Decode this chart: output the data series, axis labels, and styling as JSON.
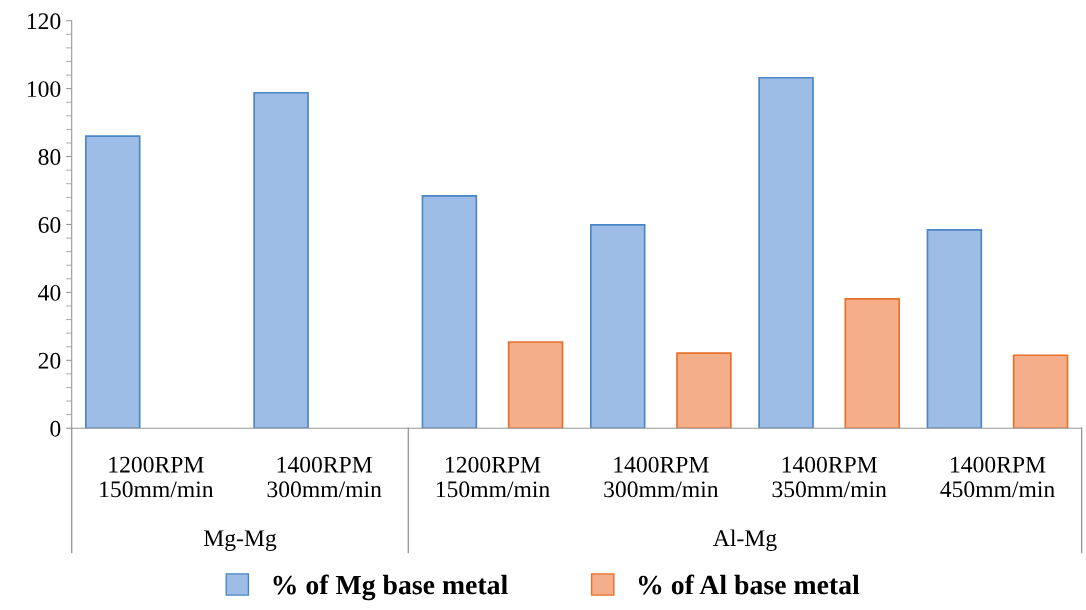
{
  "chart_data": {
    "type": "bar",
    "categories": [
      "1200RPM\n150mm/min",
      "1400RPM\n300mm/min",
      "1200RPM\n150mm/min",
      "1400RPM\n300mm/min",
      "1400RPM\n350mm/min",
      "1400RPM\n450mm/min"
    ],
    "series": [
      {
        "name": "% of Mg base metal",
        "color": "#9dbde6",
        "values": [
          86,
          98.8,
          68.4,
          59.9,
          103.2,
          58.4
        ]
      },
      {
        "name": "% of Al base metal",
        "color": "#f5ae8a",
        "values": [
          null,
          null,
          25.4,
          22.1,
          38.1,
          21.5
        ]
      }
    ],
    "annotations": [
      "Mg-Mg",
      "Al-Mg"
    ],
    "ylim": [
      0,
      120
    ],
    "yticks": [
      0,
      20,
      40,
      60,
      80,
      100,
      120
    ],
    "grid": false,
    "legend": "bottom"
  }
}
